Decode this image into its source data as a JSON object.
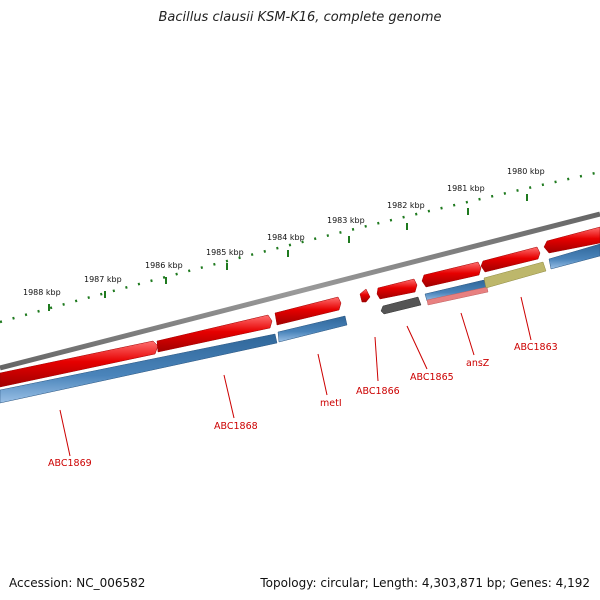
{
  "title": "Bacillus clausii KSM-K16, complete genome",
  "footer": {
    "accession": "Accession: NC_006582",
    "summary": "Topology: circular; Length: 4,303,871 bp; Genes: 4,192"
  },
  "scale_labels": [
    "1988 kbp",
    "1987 kbp",
    "1986 kbp",
    "1985 kbp",
    "1984 kbp",
    "1983 kbp",
    "1982 kbp",
    "1981 kbp",
    "1980 kbp"
  ],
  "gene_labels": [
    "ABC1869",
    "ABC1868",
    "metI",
    "ABC1866",
    "ABC1865",
    "ansZ",
    "ABC1863"
  ],
  "colors": {
    "forward_strand": "#e60000",
    "reverse_strand": "#3f78ad",
    "backbone": "#8a8a8a",
    "scale_ticks": "#1f7a1f",
    "label": "#cc0000",
    "gene_dark": "#555555",
    "gene_olive": "#bdb76b",
    "gene_pink": "#e88080"
  }
}
